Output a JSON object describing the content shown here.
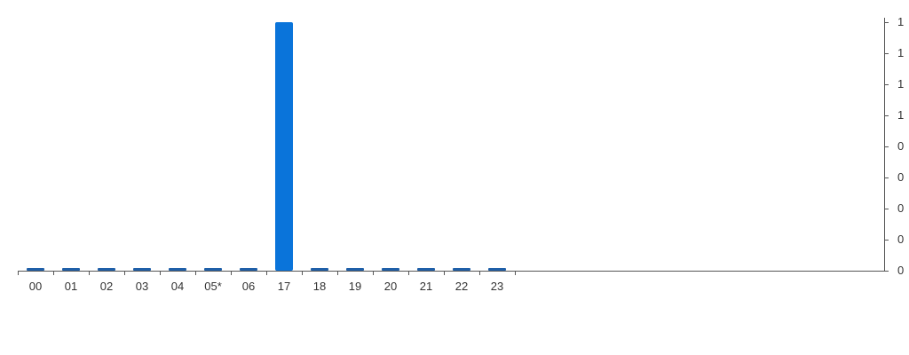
{
  "chart_data": {
    "type": "bar",
    "categories": [
      "00",
      "01",
      "02",
      "03",
      "04",
      "05*",
      "06",
      "17",
      "18",
      "19",
      "20",
      "21",
      "22",
      "23"
    ],
    "values": [
      0,
      0,
      0,
      0,
      0,
      0,
      0,
      1,
      0,
      0,
      0,
      0,
      0,
      0
    ],
    "y_tick_labels": [
      "0",
      "0",
      "0",
      "0",
      "0",
      "1",
      "1",
      "1",
      "1"
    ],
    "y_tick_values": [
      0,
      0.125,
      0.25,
      0.375,
      0.5,
      0.625,
      0.75,
      0.875,
      1
    ],
    "ylim": [
      0,
      1
    ],
    "y_axis_position": "right",
    "grid": false,
    "legend": "none",
    "colors": {
      "bar": "#0a74da",
      "zero_bar": "#1f5fa8",
      "axis": "#555555",
      "text": "#333333"
    }
  }
}
